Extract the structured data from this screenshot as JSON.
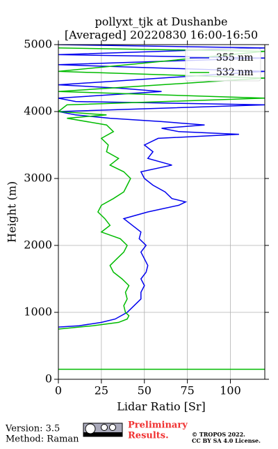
{
  "chart_data": {
    "type": "line",
    "title": "pollyxt_tjk at Dushanbe",
    "subtitle": "[Averaged] 20220830 16:00-16:50",
    "x_label": "Lidar Ratio [Sr]",
    "y_label": "Height (m)",
    "xlim": [
      0,
      120
    ],
    "xticks": [
      0,
      25,
      50,
      75,
      100
    ],
    "ylim": [
      0,
      5000
    ],
    "yticks": [
      0,
      1000,
      2000,
      3000,
      4000,
      5000
    ],
    "grid": true,
    "legend": "upper right",
    "series": [
      {
        "name": "355 nm",
        "color": "#0000ee",
        "x": [
          0,
          12,
          25,
          33,
          40,
          44,
          48,
          48,
          50,
          48,
          51,
          52,
          50,
          48,
          51,
          47,
          48,
          43,
          38,
          52,
          70,
          74,
          66,
          62,
          55,
          50,
          48,
          66,
          52,
          55,
          50,
          58,
          105,
          70,
          60,
          85,
          60,
          30,
          10,
          0,
          120,
          10,
          0,
          60,
          35,
          0,
          120,
          0,
          120,
          0,
          120,
          0
        ],
        "values": [
          780,
          800,
          850,
          900,
          1000,
          1100,
          1200,
          1300,
          1400,
          1500,
          1600,
          1700,
          1800,
          1900,
          2000,
          2100,
          2200,
          2300,
          2400,
          2500,
          2600,
          2650,
          2700,
          2800,
          2900,
          3000,
          3100,
          3200,
          3300,
          3400,
          3500,
          3600,
          3660,
          3700,
          3750,
          3800,
          3850,
          3900,
          3950,
          4000,
          4100,
          4150,
          4200,
          4300,
          4350,
          4400,
          4600,
          4700,
          4800,
          4850,
          4950,
          5000
        ]
      },
      {
        "name": "532 nm",
        "color": "#00bb00",
        "x": [
          0,
          20,
          35,
          40,
          41,
          39,
          38,
          40,
          39,
          41,
          37,
          32,
          30,
          34,
          38,
          40,
          36,
          25,
          30,
          27,
          23,
          25,
          32,
          38,
          40,
          42,
          38,
          30,
          35,
          28,
          29,
          25,
          32,
          28,
          5,
          28,
          0,
          5,
          120,
          0,
          120,
          0,
          120,
          0,
          null,
          0,
          120
        ],
        "values": [
          750,
          800,
          850,
          900,
          950,
          1000,
          1100,
          1200,
          1300,
          1400,
          1500,
          1600,
          1700,
          1800,
          1900,
          2000,
          2100,
          2200,
          2300,
          2400,
          2500,
          2600,
          2700,
          2800,
          2900,
          3000,
          3100,
          3200,
          3300,
          3400,
          3500,
          3600,
          3700,
          3800,
          3900,
          3950,
          4000,
          4100,
          4200,
          4300,
          4500,
          4600,
          4900,
          4950,
          null,
          150,
          150
        ]
      }
    ]
  },
  "footer": {
    "version": "Version: 3.5",
    "method": "Method: Raman",
    "preliminary": [
      "Preliminary",
      "Results."
    ],
    "copyright": "© TROPOS 2022.",
    "license": "CC BY SA 4.0 License."
  }
}
